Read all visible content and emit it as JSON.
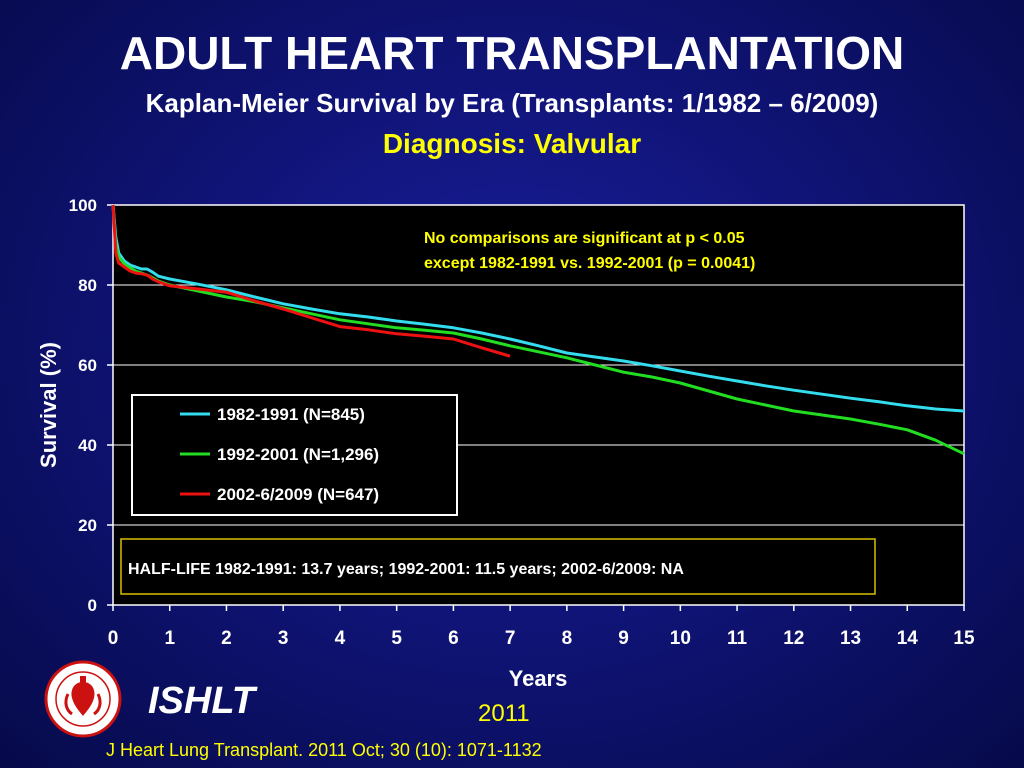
{
  "header": {
    "title": "ADULT HEART TRANSPLANTATION",
    "subtitle": "Kaplan-Meier Survival by Era (Transplants: 1/1982 – 6/2009)",
    "subtitle2": "Diagnosis: Valvular"
  },
  "footer": {
    "org": "ISHLT",
    "year": "2011",
    "citation": "J Heart Lung Transplant. 2011 Oct; 30 (10): 1071-1132"
  },
  "colors": {
    "background": "#101478",
    "plot_background": "#000000",
    "annotation_text": "#ffff00",
    "series_1982": "#33ddee",
    "series_1992": "#22dd22",
    "series_2002": "#ee1111"
  },
  "chart_data": {
    "type": "line",
    "xlabel": "Years",
    "ylabel": "Survival (%)",
    "xlim": [
      0,
      15
    ],
    "ylim": [
      0,
      100
    ],
    "x_ticks": [
      "0",
      "1",
      "2",
      "3",
      "4",
      "5",
      "6",
      "7",
      "8",
      "9",
      "10",
      "11",
      "12",
      "13",
      "14",
      "15"
    ],
    "y_ticks": [
      "0",
      "20",
      "40",
      "60",
      "80",
      "100"
    ],
    "grid": "horizontal",
    "legend_position": "center-left",
    "annotation": "No comparisons are significant at p < 0.05 except 1982-1991 vs. 1992-2001 (p = 0.0041)",
    "annotation_lines": [
      "No comparisons are significant at p < 0.05",
      "except 1982-1991 vs. 1992-2001 (p = 0.0041)"
    ],
    "half_life_note": "HALF-LIFE 1982-1991: 13.7 years; 1992-2001: 11.5 years; 2002-6/2009: NA",
    "series": [
      {
        "name": "1982-1991 (N=845)",
        "color": "#33ddee",
        "x": [
          0,
          0.05,
          0.1,
          0.2,
          0.3,
          0.4,
          0.5,
          0.6,
          0.7,
          0.8,
          1,
          1.5,
          2,
          2.5,
          3,
          3.5,
          4,
          4.5,
          5,
          5.5,
          6,
          6.5,
          7,
          7.5,
          8,
          8.5,
          9,
          9.5,
          10,
          10.5,
          11,
          11.5,
          12,
          12.5,
          13,
          13.5,
          14,
          14.5,
          15
        ],
        "y": [
          100,
          92,
          88,
          86,
          85,
          84.5,
          84,
          84,
          83.2,
          82.2,
          81.5,
          80.2,
          78.8,
          77,
          75.3,
          74,
          72.8,
          72,
          71,
          70.2,
          69.3,
          68,
          66.5,
          64.8,
          63,
          62,
          61,
          59.8,
          58.5,
          57.2,
          56,
          54.8,
          53.7,
          52.7,
          51.7,
          50.8,
          49.8,
          49,
          48.5
        ]
      },
      {
        "name": "1992-2001 (N=1,296)",
        "color": "#22dd22",
        "x": [
          0,
          0.05,
          0.1,
          0.2,
          0.3,
          0.4,
          0.5,
          0.6,
          0.7,
          0.8,
          1,
          1.5,
          2,
          2.5,
          3,
          3.5,
          4,
          4.5,
          5,
          5.5,
          6,
          6.5,
          7,
          7.5,
          8,
          8.5,
          9,
          9.5,
          10,
          10.5,
          11,
          11.5,
          12,
          12.5,
          13,
          13.5,
          14,
          14.5,
          15
        ],
        "y": [
          100,
          90,
          87,
          85.3,
          84.3,
          83.5,
          83,
          82.5,
          81.8,
          81,
          80,
          78.5,
          77,
          75.8,
          74.3,
          72.8,
          71.3,
          70.3,
          69.3,
          68.7,
          68,
          66.5,
          64.8,
          63.3,
          61.8,
          60,
          58.2,
          57,
          55.5,
          53.5,
          51.5,
          50,
          48.5,
          47.5,
          46.5,
          45.2,
          43.8,
          41.2,
          37.8
        ]
      },
      {
        "name": "2002-6/2009 (N=647)",
        "color": "#ee1111",
        "x": [
          0,
          0.05,
          0.1,
          0.2,
          0.3,
          0.4,
          0.5,
          0.6,
          0.7,
          0.8,
          1,
          1.5,
          2,
          2.5,
          3,
          3.5,
          4,
          4.5,
          5,
          5.5,
          6,
          6.5,
          7
        ],
        "y": [
          100,
          88,
          85.5,
          84.5,
          83.5,
          83,
          82.8,
          82.5,
          81.5,
          80.8,
          79.8,
          79,
          78.2,
          76,
          74,
          71.8,
          69.6,
          68.8,
          67.8,
          67.2,
          66.5,
          64.3,
          62.2
        ]
      }
    ]
  }
}
